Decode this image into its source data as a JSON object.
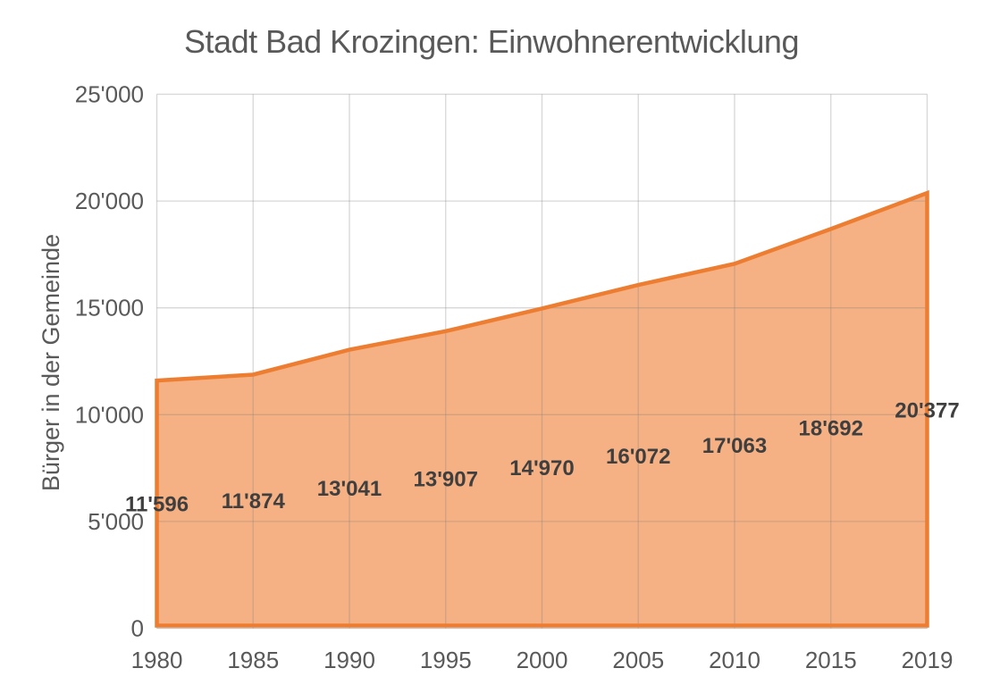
{
  "chart_data": {
    "type": "area",
    "title": "Stadt Bad Krozingen: Einwohnerentwicklung",
    "xlabel": "",
    "ylabel": "Bürger in der Gemeinde",
    "categories": [
      "1980",
      "1985",
      "1990",
      "1995",
      "2000",
      "2005",
      "2010",
      "2015",
      "2019"
    ],
    "values": [
      11596,
      11874,
      13041,
      13907,
      14970,
      16072,
      17063,
      18692,
      20377
    ],
    "value_labels": [
      "11'596",
      "11'874",
      "13'041",
      "13'907",
      "14'970",
      "16'072",
      "17'063",
      "18'692",
      "20'377"
    ],
    "ylim": [
      0,
      25000
    ],
    "ytick_values": [
      0,
      5000,
      10000,
      15000,
      20000,
      25000
    ],
    "ytick_labels": [
      "0",
      "5'000",
      "10'000",
      "15'000",
      "20'000",
      "25'000"
    ],
    "grid": true,
    "legend": "none",
    "label_position": "center-of-area",
    "colors": {
      "line": "#ED7D31",
      "fill": "#F5B183",
      "gridline": "#D9D9D9",
      "axis_line": "#BFBFBF",
      "axis_text": "#595959",
      "title_text": "#595959",
      "data_label": "#3F3F3F",
      "background": "#FFFFFF"
    }
  }
}
